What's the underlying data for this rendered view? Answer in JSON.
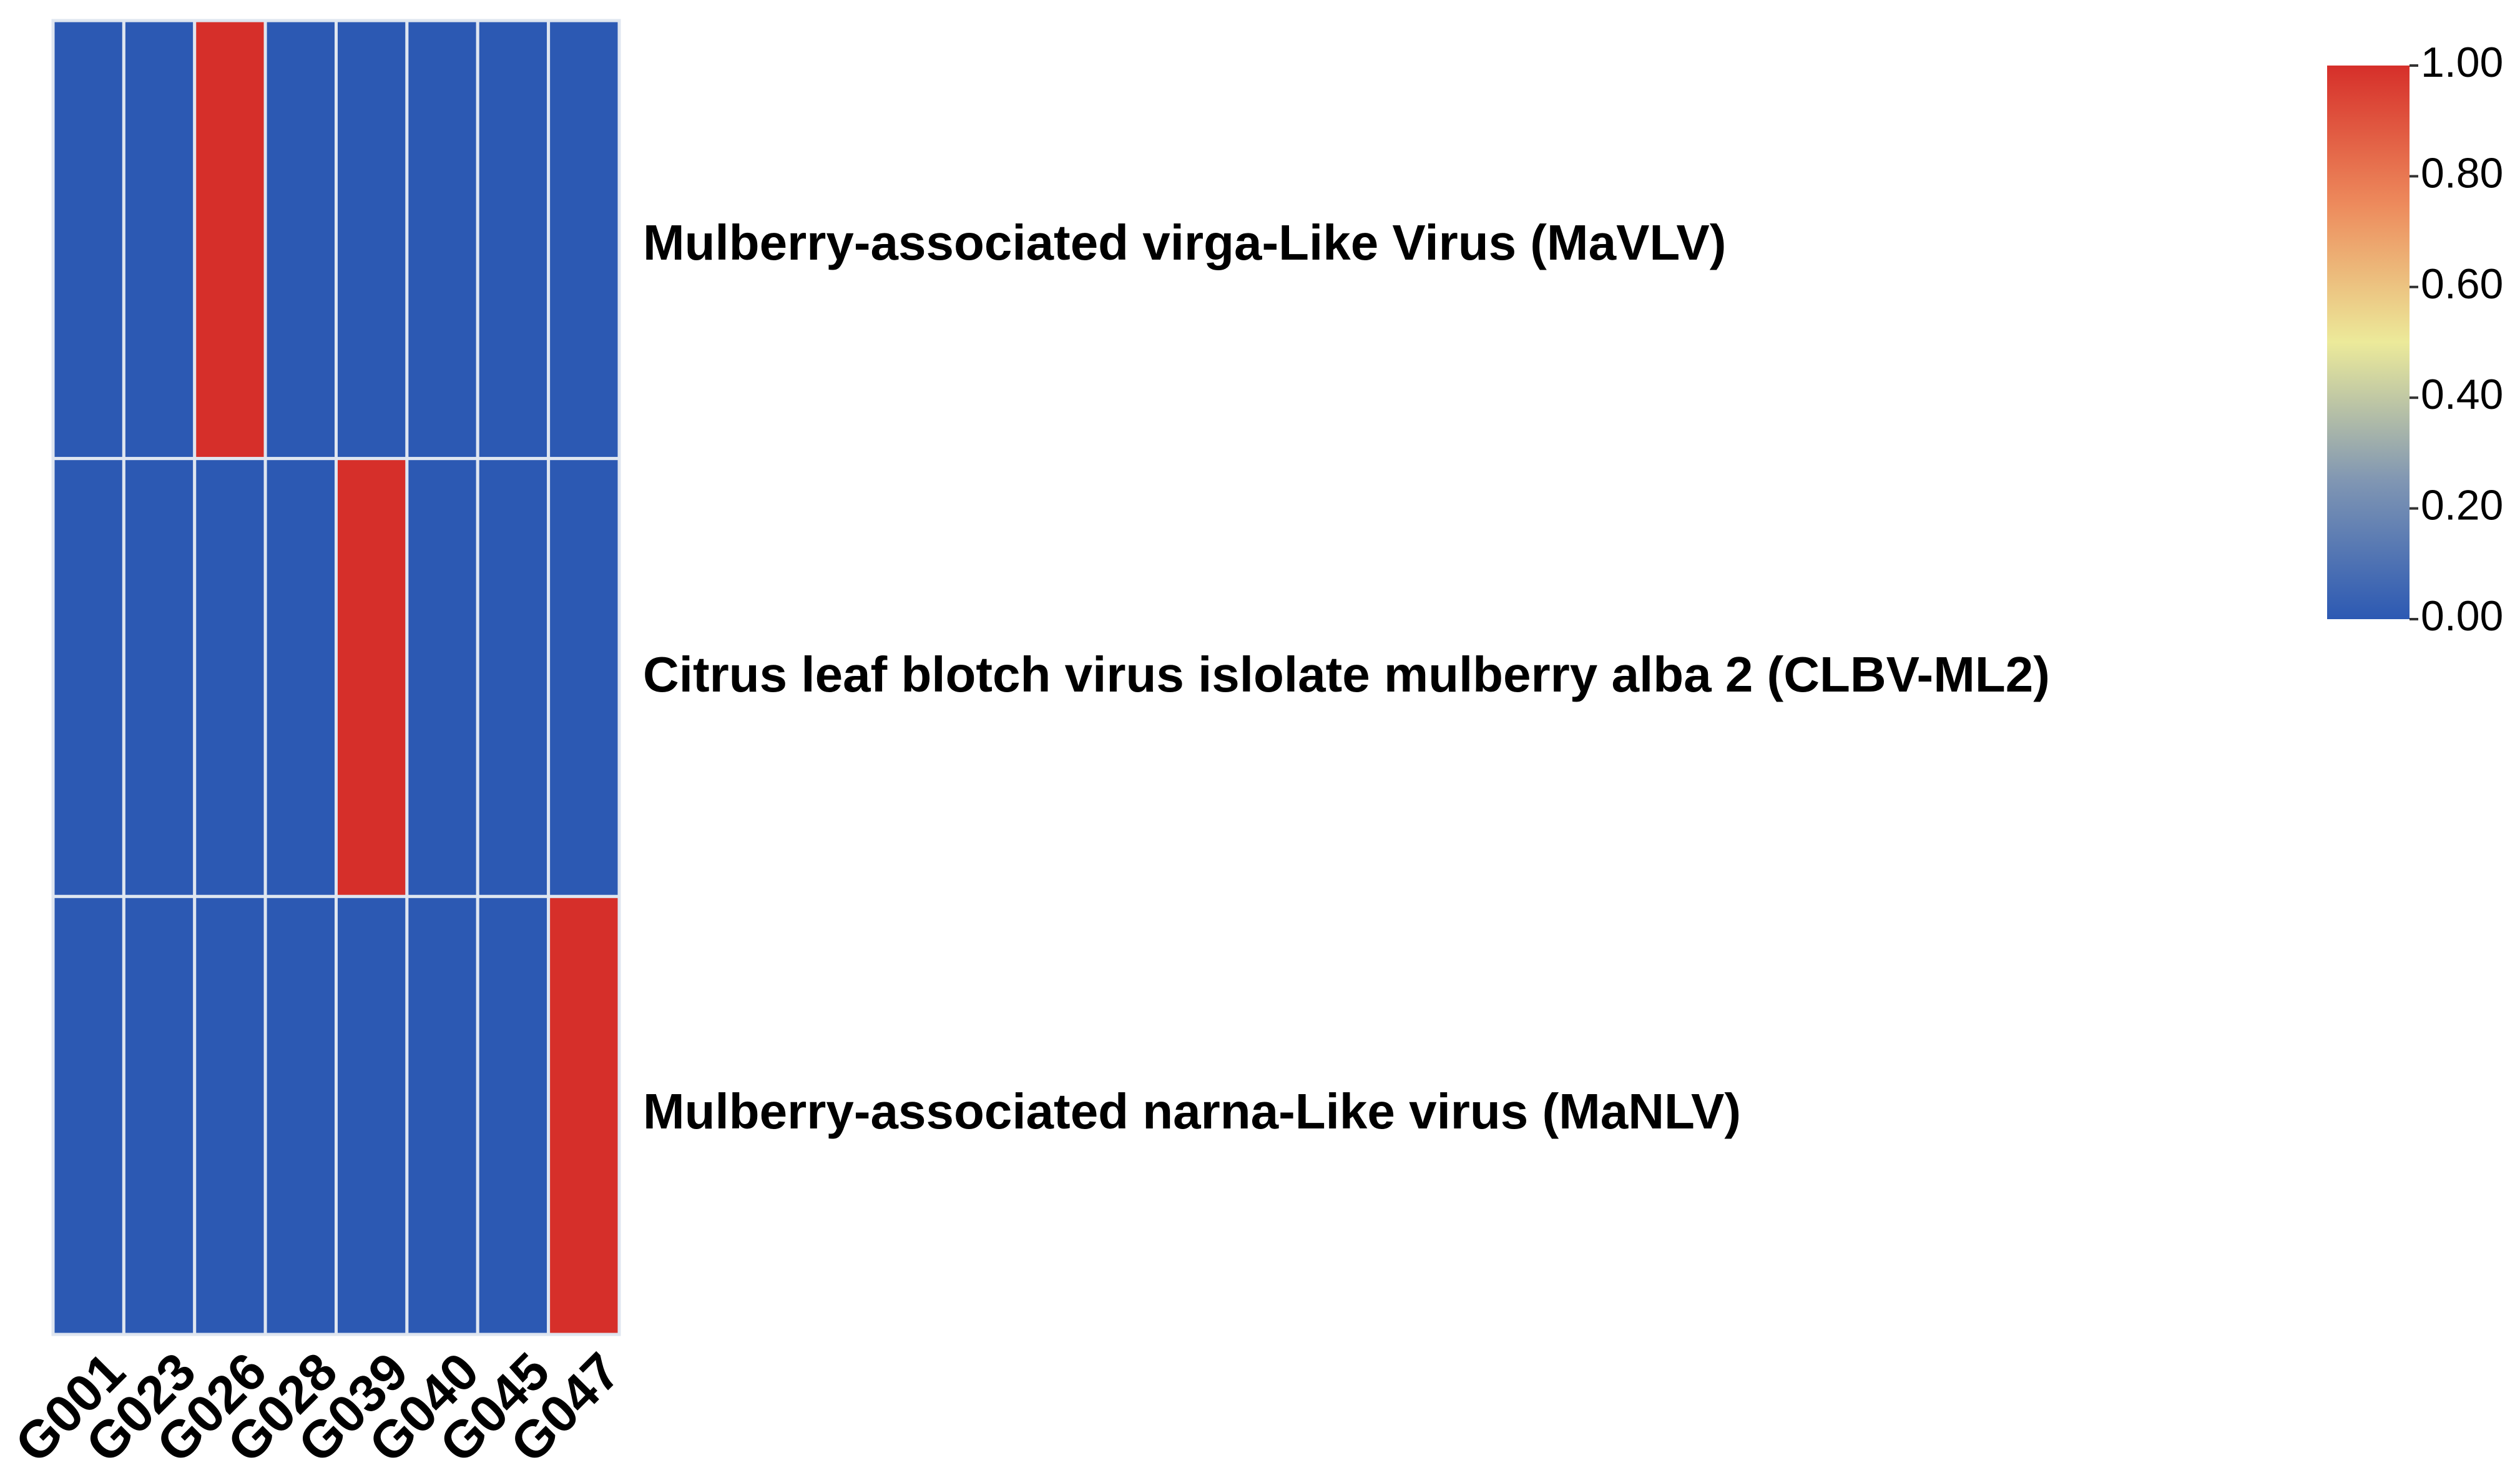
{
  "chart_data": {
    "type": "heatmap",
    "title": "",
    "columns": [
      "G001",
      "G023",
      "G026",
      "G028",
      "G039",
      "G040",
      "G045",
      "G047"
    ],
    "rows": [
      "Mulberry-associated virga-Like Virus (MaVLV)",
      "Citrus leaf blotch virus islolate mulberry alba 2 (CLBV-ML2)",
      "Mulberry-associated narna-Like virus (MaNLV)"
    ],
    "values": [
      [
        0,
        0,
        1,
        0,
        0,
        0,
        0,
        0
      ],
      [
        0,
        0,
        0,
        0,
        1,
        0,
        0,
        0
      ],
      [
        0,
        0,
        0,
        0,
        0,
        0,
        0,
        1
      ]
    ],
    "colorbar": {
      "range": [
        0,
        1
      ],
      "ticks": [
        "1.00",
        "0.80",
        "0.60",
        "0.40",
        "0.20",
        "0.00"
      ],
      "tick_values": [
        1.0,
        0.8,
        0.6,
        0.4,
        0.2,
        0.0
      ],
      "colors": {
        "low": "#2c59b3",
        "mid_low": "#8096b3",
        "mid": "#ecea9a",
        "mid_high": "#ed8a5c",
        "high": "#d62f2a"
      }
    },
    "grid_line_color": "#dfe6f0"
  }
}
